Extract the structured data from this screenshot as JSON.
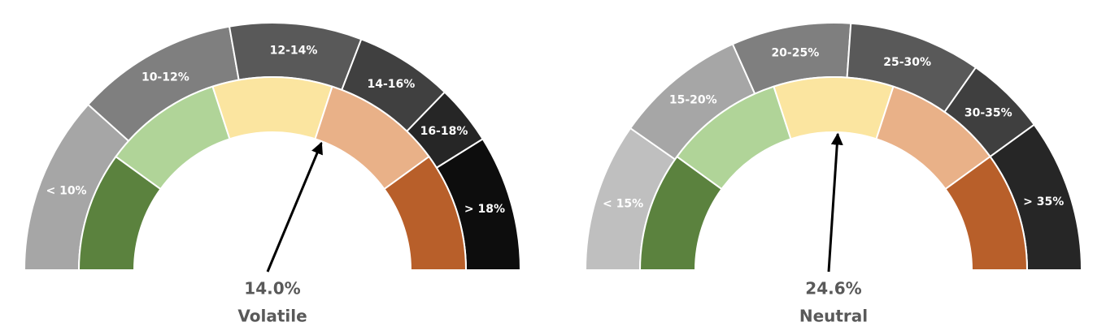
{
  "chart_data": [
    {
      "type": "gauge",
      "segments": [
        {
          "label": "< 10%",
          "max": 10,
          "span": 42,
          "color": "#a6a6a6"
        },
        {
          "label": "10-12%",
          "min": 10,
          "max": 12,
          "span": 38,
          "color": "#7f7f7f"
        },
        {
          "label": "12-14%",
          "min": 12,
          "max": 14,
          "span": 31,
          "color": "#595959"
        },
        {
          "label": "14-16%",
          "min": 14,
          "max": 16,
          "span": 23,
          "color": "#404040"
        },
        {
          "label": "16-18%",
          "min": 16,
          "max": 18,
          "span": 14,
          "color": "#262626"
        },
        {
          "label": "> 18%",
          "min": 18,
          "span": 32,
          "color": "#0d0d0d"
        }
      ],
      "bands": {
        "values": [
          36,
          36,
          36,
          36,
          36
        ],
        "colors": [
          "#5b823e",
          "#b0d498",
          "#fbe5a0",
          "#e9b188",
          "#b85f2a"
        ]
      },
      "needle": {
        "value": 14.0,
        "value_label": "14.0%",
        "status": "Volatile"
      }
    },
    {
      "type": "gauge",
      "segments": [
        {
          "label": "< 15%",
          "max": 15,
          "span": 35,
          "color": "#bfbfbf"
        },
        {
          "label": "15-20%",
          "min": 15,
          "max": 20,
          "span": 31,
          "color": "#a6a6a6"
        },
        {
          "label": "20-25%",
          "min": 20,
          "max": 25,
          "span": 28,
          "color": "#7f7f7f"
        },
        {
          "label": "25-30%",
          "min": 25,
          "max": 30,
          "span": 31,
          "color": "#595959"
        },
        {
          "label": "30-35%",
          "min": 30,
          "max": 35,
          "span": 19,
          "color": "#3f3f3f"
        },
        {
          "label": "> 35%",
          "min": 35,
          "span": 36,
          "color": "#262626"
        }
      ],
      "bands": {
        "values": [
          36,
          36,
          36,
          36,
          36
        ],
        "colors": [
          "#5b823e",
          "#b0d498",
          "#fbe5a0",
          "#e9b188",
          "#b85f2a"
        ]
      },
      "needle": {
        "value": 24.6,
        "value_label": "24.6%",
        "status": "Neutral"
      }
    }
  ]
}
